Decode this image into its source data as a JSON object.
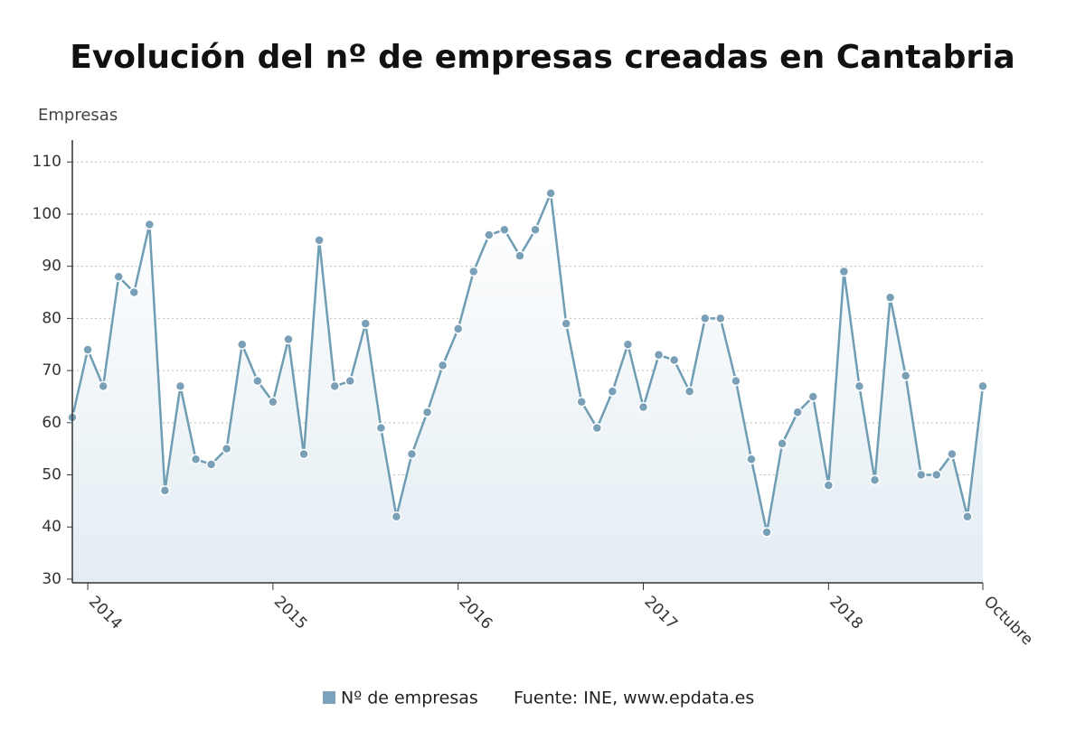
{
  "chart_data": {
    "type": "line",
    "title": "Evolución del nº de empresas creadas en Cantabria",
    "y_label": "Empresas",
    "source": "Fuente: INE, www.epdata.es",
    "categories": [
      null,
      "2014",
      null,
      null,
      null,
      null,
      null,
      null,
      null,
      null,
      null,
      null,
      null,
      "2015",
      null,
      null,
      null,
      null,
      null,
      null,
      null,
      null,
      null,
      null,
      null,
      "2016",
      null,
      null,
      null,
      null,
      null,
      null,
      null,
      null,
      null,
      null,
      null,
      "2017",
      null,
      null,
      null,
      null,
      null,
      null,
      null,
      null,
      null,
      null,
      null,
      "2018",
      null,
      null,
      null,
      null,
      null,
      null,
      null,
      null,
      null,
      "Octubre"
    ],
    "series": [
      {
        "name": "Nº de empresas",
        "color": "#6f9db3",
        "values": [
          61,
          74,
          67,
          88,
          85,
          98,
          47,
          67,
          53,
          52,
          55,
          75,
          68,
          64,
          76,
          54,
          95,
          67,
          68,
          79,
          59,
          42,
          54,
          62,
          71,
          78,
          89,
          96,
          97,
          92,
          97,
          104,
          79,
          64,
          59,
          66,
          75,
          63,
          73,
          72,
          66,
          80,
          80,
          68,
          53,
          39,
          56,
          62,
          65,
          48,
          89,
          67,
          49,
          84,
          69,
          50,
          50,
          54,
          42,
          67
        ]
      }
    ],
    "ylim": [
      29.3,
      114.2
    ],
    "yticks": [
      30,
      40,
      50,
      60,
      70,
      80,
      90,
      100,
      110
    ],
    "grid": true
  }
}
